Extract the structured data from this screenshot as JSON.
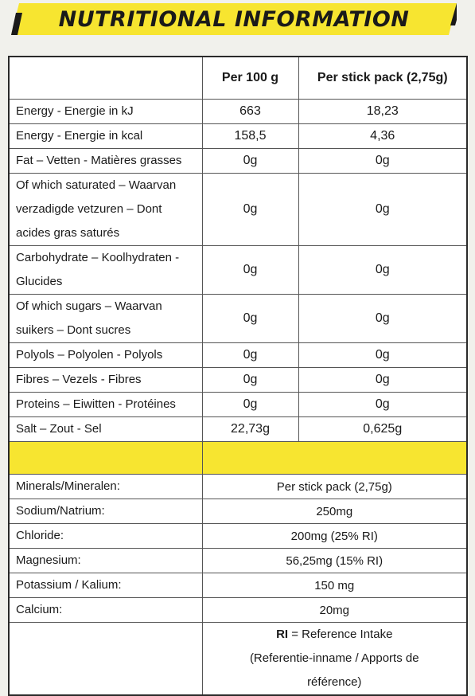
{
  "banner": {
    "title": "NUTRITIONAL INFORMATION",
    "color": "#f7e530"
  },
  "table": {
    "header": {
      "blank": "",
      "col1": "Per 100 g",
      "col2": "Per stick pack (2,75g)"
    },
    "rows": [
      {
        "label": "Energy - Energie in kJ",
        "per100": "663",
        "perstick": "18,23"
      },
      {
        "label": "Energy - Energie in kcal",
        "per100": "158,5",
        "perstick": "4,36"
      },
      {
        "label": "Fat – Vetten - Matières grasses",
        "per100": "0g",
        "perstick": "0g"
      },
      {
        "label": "Of which saturated – Waarvan verzadigde vetzuren – Dont acides gras saturés",
        "per100": "0g",
        "perstick": "0g"
      },
      {
        "label": "Carbohydrate – Koolhydraten - Glucides",
        "per100": "0g",
        "perstick": "0g"
      },
      {
        "label": "Of which sugars – Waarvan suikers – Dont sucres",
        "per100": "0g",
        "perstick": "0g"
      },
      {
        "label": "Polyols – Polyolen - Polyols",
        "per100": "0g",
        "perstick": "0g"
      },
      {
        "label": "Fibres – Vezels - Fibres",
        "per100": "0g",
        "perstick": "0g"
      },
      {
        "label": "Proteins – Eiwitten - Protéines",
        "per100": "0g",
        "perstick": "0g"
      },
      {
        "label": "Salt – Zout - Sel",
        "per100": "22,73g",
        "perstick": "0,625g"
      }
    ],
    "minerals": [
      {
        "label": "Minerals/Mineralen:",
        "value": "Per stick pack (2,75g)"
      },
      {
        "label": "Sodium/Natrium:",
        "value": "250mg"
      },
      {
        "label": "Chloride:",
        "value": "200mg (25% RI)"
      },
      {
        "label": "Magnesium:",
        "value": "56,25mg (15% RI)"
      },
      {
        "label": "Potassium / Kalium:",
        "value": "150 mg"
      },
      {
        "label": "Calcium:",
        "value": "20mg"
      }
    ],
    "note": {
      "abbr": "RI",
      "line1_rest": " = Reference Intake",
      "line2": "(Referentie-inname / Apports de",
      "line3": "référence)"
    }
  }
}
